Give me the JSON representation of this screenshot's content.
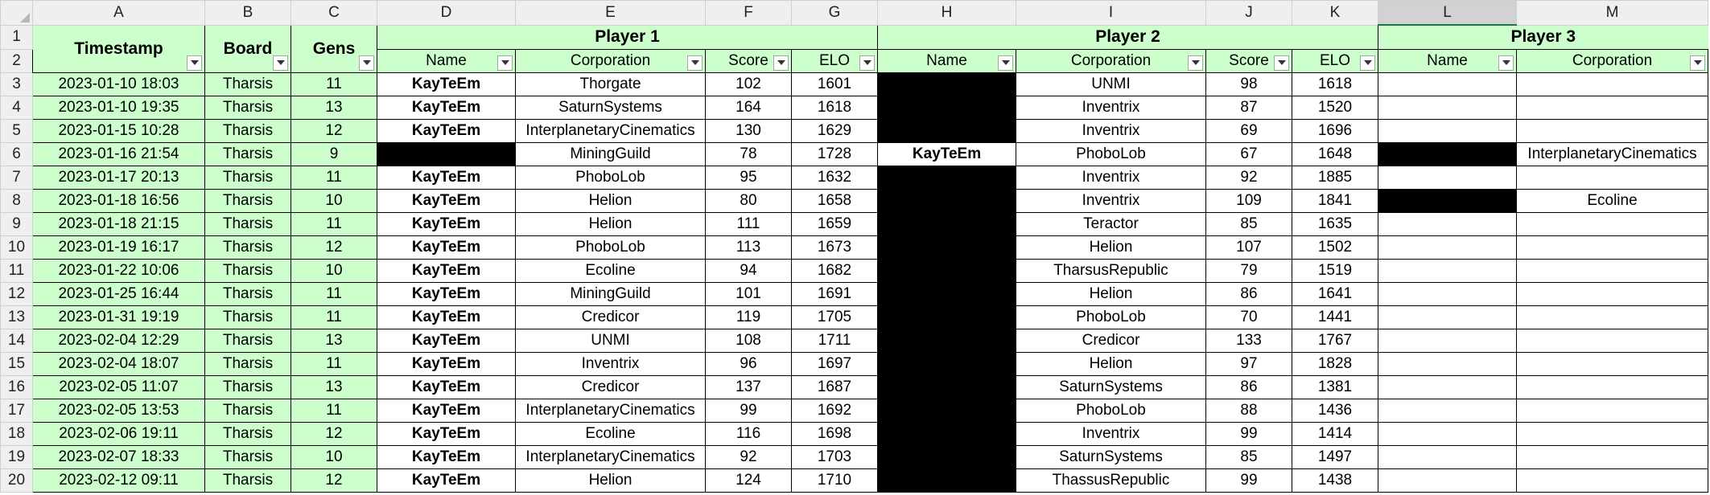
{
  "columns": [
    "A",
    "B",
    "C",
    "D",
    "E",
    "F",
    "G",
    "H",
    "I",
    "J",
    "K",
    "L",
    "M"
  ],
  "selected_column": "L",
  "headers": {
    "timestamp": "Timestamp",
    "board": "Board",
    "gens": "Gens",
    "player1": "Player 1",
    "player2": "Player 2",
    "player3": "Player 3",
    "name": "Name",
    "corporation": "Corporation",
    "score": "Score",
    "elo": "ELO"
  },
  "rows": [
    {
      "num": "3",
      "ts": "2023-01-10 18:03",
      "board": "Tharsis",
      "gens": "11",
      "p1_name": "KayTeEm",
      "p1_corp": "Thorgate",
      "p1_score": "102",
      "p1_elo": "1601",
      "p2_name": "",
      "p2_corp": "UNMI",
      "p2_score": "98",
      "p2_elo": "1618",
      "p3_name": "",
      "p3_corp": ""
    },
    {
      "num": "4",
      "ts": "2023-01-10 19:35",
      "board": "Tharsis",
      "gens": "13",
      "p1_name": "KayTeEm",
      "p1_corp": "SaturnSystems",
      "p1_score": "164",
      "p1_elo": "1618",
      "p2_name": "",
      "p2_corp": "Inventrix",
      "p2_score": "87",
      "p2_elo": "1520",
      "p3_name": "",
      "p3_corp": ""
    },
    {
      "num": "5",
      "ts": "2023-01-15 10:28",
      "board": "Tharsis",
      "gens": "12",
      "p1_name": "KayTeEm",
      "p1_corp": "InterplanetaryCinematics",
      "p1_score": "130",
      "p1_elo": "1629",
      "p2_name": "",
      "p2_corp": "Inventrix",
      "p2_score": "69",
      "p2_elo": "1696",
      "p3_name": "",
      "p3_corp": ""
    },
    {
      "num": "6",
      "ts": "2023-01-16 21:54",
      "board": "Tharsis",
      "gens": "9",
      "p1_name": "",
      "p1_corp": "MiningGuild",
      "p1_score": "78",
      "p1_elo": "1728",
      "p2_name": "KayTeEm",
      "p2_corp": "PhoboLob",
      "p2_score": "67",
      "p2_elo": "1648",
      "p3_name": "",
      "p3_corp": "InterplanetaryCinematics"
    },
    {
      "num": "7",
      "ts": "2023-01-17 20:13",
      "board": "Tharsis",
      "gens": "11",
      "p1_name": "KayTeEm",
      "p1_corp": "PhoboLob",
      "p1_score": "95",
      "p1_elo": "1632",
      "p2_name": "",
      "p2_corp": "Inventrix",
      "p2_score": "92",
      "p2_elo": "1885",
      "p3_name": "",
      "p3_corp": ""
    },
    {
      "num": "8",
      "ts": "2023-01-18 16:56",
      "board": "Tharsis",
      "gens": "10",
      "p1_name": "KayTeEm",
      "p1_corp": "Helion",
      "p1_score": "80",
      "p1_elo": "1658",
      "p2_name": "",
      "p2_corp": "Inventrix",
      "p2_score": "109",
      "p2_elo": "1841",
      "p3_name": "",
      "p3_corp": "Ecoline"
    },
    {
      "num": "9",
      "ts": "2023-01-18 21:15",
      "board": "Tharsis",
      "gens": "11",
      "p1_name": "KayTeEm",
      "p1_corp": "Helion",
      "p1_score": "111",
      "p1_elo": "1659",
      "p2_name": "",
      "p2_corp": "Teractor",
      "p2_score": "85",
      "p2_elo": "1635",
      "p3_name": "",
      "p3_corp": ""
    },
    {
      "num": "10",
      "ts": "2023-01-19 16:17",
      "board": "Tharsis",
      "gens": "12",
      "p1_name": "KayTeEm",
      "p1_corp": "PhoboLob",
      "p1_score": "113",
      "p1_elo": "1673",
      "p2_name": "",
      "p2_corp": "Helion",
      "p2_score": "107",
      "p2_elo": "1502",
      "p3_name": "",
      "p3_corp": ""
    },
    {
      "num": "11",
      "ts": "2023-01-22 10:06",
      "board": "Tharsis",
      "gens": "10",
      "p1_name": "KayTeEm",
      "p1_corp": "Ecoline",
      "p1_score": "94",
      "p1_elo": "1682",
      "p2_name": "",
      "p2_corp": "TharsusRepublic",
      "p2_score": "79",
      "p2_elo": "1519",
      "p3_name": "",
      "p3_corp": ""
    },
    {
      "num": "12",
      "ts": "2023-01-25 16:44",
      "board": "Tharsis",
      "gens": "11",
      "p1_name": "KayTeEm",
      "p1_corp": "MiningGuild",
      "p1_score": "101",
      "p1_elo": "1691",
      "p2_name": "",
      "p2_corp": "Helion",
      "p2_score": "86",
      "p2_elo": "1641",
      "p3_name": "",
      "p3_corp": ""
    },
    {
      "num": "13",
      "ts": "2023-01-31 19:19",
      "board": "Tharsis",
      "gens": "11",
      "p1_name": "KayTeEm",
      "p1_corp": "Credicor",
      "p1_score": "119",
      "p1_elo": "1705",
      "p2_name": "",
      "p2_corp": "PhoboLob",
      "p2_score": "70",
      "p2_elo": "1441",
      "p3_name": "",
      "p3_corp": ""
    },
    {
      "num": "14",
      "ts": "2023-02-04 12:29",
      "board": "Tharsis",
      "gens": "13",
      "p1_name": "KayTeEm",
      "p1_corp": "UNMI",
      "p1_score": "108",
      "p1_elo": "1711",
      "p2_name": "",
      "p2_corp": "Credicor",
      "p2_score": "133",
      "p2_elo": "1767",
      "p3_name": "",
      "p3_corp": ""
    },
    {
      "num": "15",
      "ts": "2023-02-04 18:07",
      "board": "Tharsis",
      "gens": "11",
      "p1_name": "KayTeEm",
      "p1_corp": "Inventrix",
      "p1_score": "96",
      "p1_elo": "1697",
      "p2_name": "",
      "p2_corp": "Helion",
      "p2_score": "97",
      "p2_elo": "1828",
      "p3_name": "",
      "p3_corp": ""
    },
    {
      "num": "16",
      "ts": "2023-02-05 11:07",
      "board": "Tharsis",
      "gens": "13",
      "p1_name": "KayTeEm",
      "p1_corp": "Credicor",
      "p1_score": "137",
      "p1_elo": "1687",
      "p2_name": "",
      "p2_corp": "SaturnSystems",
      "p2_score": "86",
      "p2_elo": "1381",
      "p3_name": "",
      "p3_corp": ""
    },
    {
      "num": "17",
      "ts": "2023-02-05 13:53",
      "board": "Tharsis",
      "gens": "11",
      "p1_name": "KayTeEm",
      "p1_corp": "InterplanetaryCinematics",
      "p1_score": "99",
      "p1_elo": "1692",
      "p2_name": "",
      "p2_corp": "PhoboLob",
      "p2_score": "88",
      "p2_elo": "1436",
      "p3_name": "",
      "p3_corp": ""
    },
    {
      "num": "18",
      "ts": "2023-02-06 19:11",
      "board": "Tharsis",
      "gens": "12",
      "p1_name": "KayTeEm",
      "p1_corp": "Ecoline",
      "p1_score": "116",
      "p1_elo": "1698",
      "p2_name": "",
      "p2_corp": "Inventrix",
      "p2_score": "99",
      "p2_elo": "1414",
      "p3_name": "",
      "p3_corp": ""
    },
    {
      "num": "19",
      "ts": "2023-02-07 18:33",
      "board": "Tharsis",
      "gens": "10",
      "p1_name": "KayTeEm",
      "p1_corp": "InterplanetaryCinematics",
      "p1_score": "92",
      "p1_elo": "1703",
      "p2_name": "",
      "p2_corp": "SaturnSystems",
      "p2_score": "85",
      "p2_elo": "1497",
      "p3_name": "",
      "p3_corp": ""
    },
    {
      "num": "20",
      "ts": "2023-02-12 09:11",
      "board": "Tharsis",
      "gens": "12",
      "p1_name": "KayTeEm",
      "p1_corp": "Helion",
      "p1_score": "124",
      "p1_elo": "1710",
      "p2_name": "",
      "p2_corp": "ThassusRepublic",
      "p2_score": "99",
      "p2_elo": "1438",
      "p3_name": "",
      "p3_corp": ""
    }
  ]
}
